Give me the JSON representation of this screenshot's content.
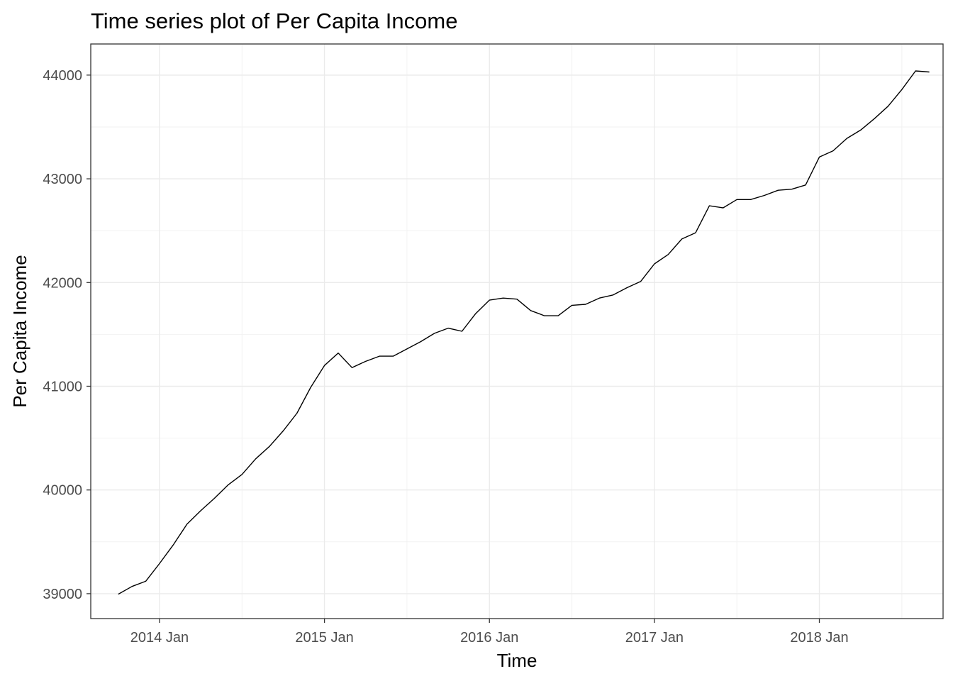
{
  "chart_data": {
    "type": "line",
    "title": "Time series plot of Per Capita Income",
    "xlabel": "Time",
    "ylabel": "Per Capita Income",
    "x_ticks": [
      {
        "label": "2014 Jan",
        "date": "2014-01"
      },
      {
        "label": "2015 Jan",
        "date": "2015-01"
      },
      {
        "label": "2016 Jan",
        "date": "2016-01"
      },
      {
        "label": "2017 Jan",
        "date": "2017-01"
      },
      {
        "label": "2018 Jan",
        "date": "2018-01"
      }
    ],
    "y_ticks": [
      39000,
      40000,
      41000,
      42000,
      43000,
      44000
    ],
    "xlim": [
      "2013-08",
      "2018-10"
    ],
    "ylim": [
      38760,
      44300
    ],
    "grid": true,
    "series": [
      {
        "color": "#000000",
        "x": [
          "2013-10",
          "2013-11",
          "2013-12",
          "2014-01",
          "2014-02",
          "2014-03",
          "2014-04",
          "2014-05",
          "2014-06",
          "2014-07",
          "2014-08",
          "2014-09",
          "2014-10",
          "2014-11",
          "2014-12",
          "2015-01",
          "2015-02",
          "2015-03",
          "2015-04",
          "2015-05",
          "2015-06",
          "2015-07",
          "2015-08",
          "2015-09",
          "2015-10",
          "2015-11",
          "2015-12",
          "2016-01",
          "2016-02",
          "2016-03",
          "2016-04",
          "2016-05",
          "2016-06",
          "2016-07",
          "2016-08",
          "2016-09",
          "2016-10",
          "2016-11",
          "2016-12",
          "2017-01",
          "2017-02",
          "2017-03",
          "2017-04",
          "2017-05",
          "2017-06",
          "2017-07",
          "2017-08",
          "2017-09",
          "2017-10",
          "2017-11",
          "2017-12",
          "2018-01",
          "2018-02",
          "2018-03",
          "2018-04",
          "2018-05",
          "2018-06",
          "2018-07",
          "2018-08",
          "2018-09"
        ],
        "values": [
          38995,
          39070,
          39120,
          39290,
          39470,
          39670,
          39800,
          39920,
          40050,
          40150,
          40300,
          40420,
          40570,
          40740,
          40990,
          41200,
          41320,
          41180,
          41240,
          41290,
          41290,
          41360,
          41430,
          41510,
          41560,
          41530,
          41700,
          41830,
          41850,
          41840,
          41730,
          41680,
          41680,
          41780,
          41790,
          41850,
          41880,
          41950,
          42010,
          42180,
          42270,
          42420,
          42480,
          42740,
          42720,
          42800,
          42800,
          42840,
          42890,
          42900,
          42940,
          43210,
          43270,
          43390,
          43470,
          43580,
          43700,
          43860,
          44040,
          44030
        ]
      }
    ]
  }
}
